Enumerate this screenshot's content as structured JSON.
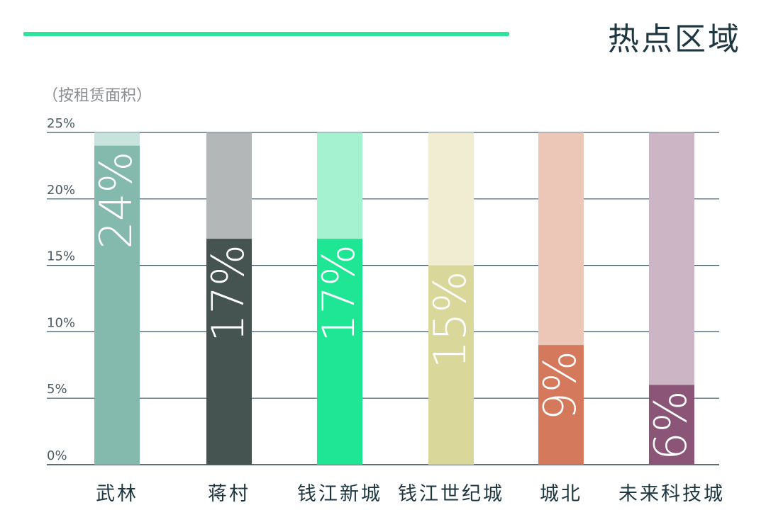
{
  "header": {
    "title": "热点区域",
    "accent_color": "#2fe39b"
  },
  "chart_data": {
    "type": "bar",
    "unit_note": "（按租赁面积）",
    "categories": [
      "武林",
      "蒋村",
      "钱江新城",
      "钱江世纪城",
      "城北",
      "未来科技城"
    ],
    "values": [
      24,
      17,
      17,
      15,
      9,
      6
    ],
    "value_labels": [
      "24%",
      "17%",
      "17%",
      "15%",
      "9%",
      "6%"
    ],
    "ylim": [
      0,
      25
    ],
    "yticks": [
      0,
      5,
      10,
      15,
      20,
      25
    ],
    "ytick_labels": [
      "0%",
      "5%",
      "10%",
      "15%",
      "20%",
      "25%"
    ],
    "grid": true,
    "colors": [
      "#84b9ae",
      "#455451",
      "#1fe694",
      "#dad79b",
      "#d4795b",
      "#8a5576"
    ],
    "track_colors": [
      "#c8e3dc",
      "#b3b7b8",
      "#a4f2cf",
      "#f0edd3",
      "#ecc6b6",
      "#ccb6c6"
    ]
  }
}
